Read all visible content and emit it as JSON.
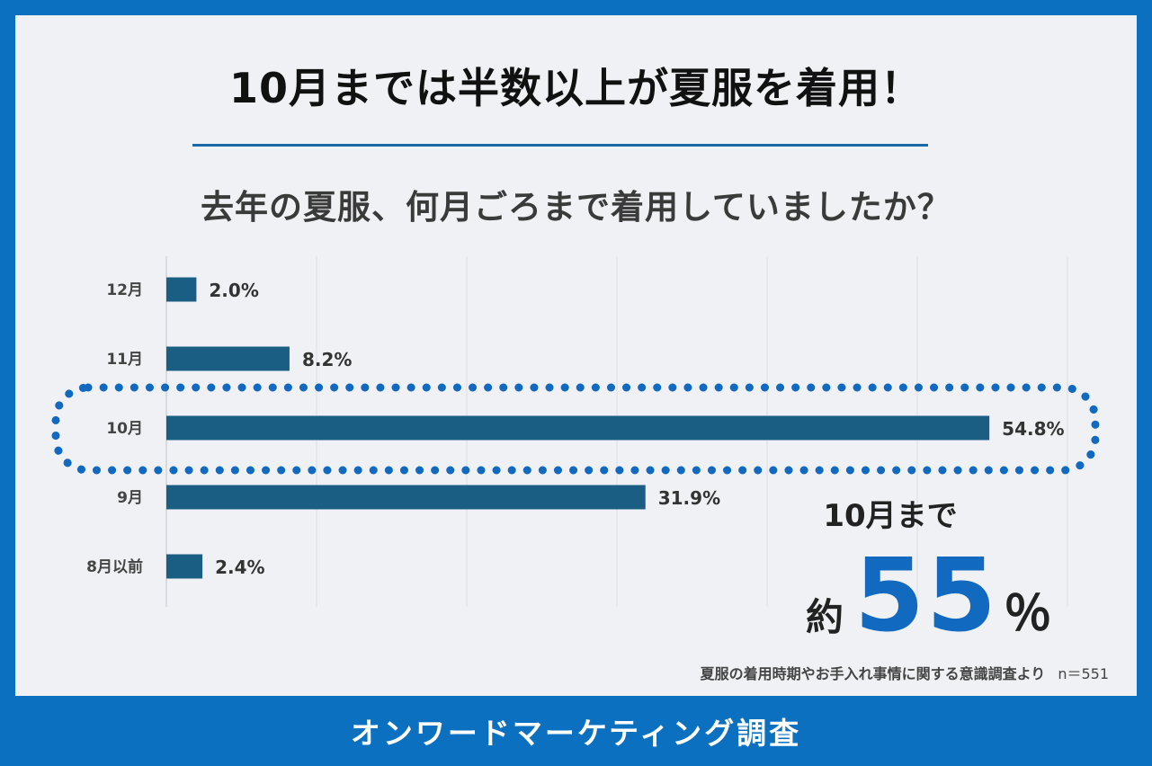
{
  "headline": "10月までは半数以上が夏服を着用！",
  "question": "去年の夏服、何月ごろまで着用していましたか？",
  "chart_data": {
    "type": "bar",
    "orientation": "horizontal",
    "categories": [
      "12月",
      "11月",
      "10月",
      "9月",
      "8月以前"
    ],
    "values": [
      2.0,
      8.2,
      54.8,
      31.9,
      2.4
    ],
    "value_labels": [
      "2.0%",
      "8.2%",
      "54.8%",
      "31.9%",
      "2.4%"
    ],
    "highlight_category": "10月",
    "xlim": [
      0,
      60
    ],
    "grid": true,
    "bar_color": "#1b5e84",
    "highlight_color": "#1169c0"
  },
  "callout": {
    "line1": "10月まで",
    "prefix": "約",
    "number": "55",
    "unit": "％"
  },
  "source": {
    "text": "夏服の着用時期やお手入れ事情に関する意識調査より",
    "n": "n＝551"
  },
  "footer": "オンワードマーケティング調査",
  "colors": {
    "frame": "#0b70bf",
    "panel": "#f0f1f5",
    "accent": "#1169c0"
  }
}
